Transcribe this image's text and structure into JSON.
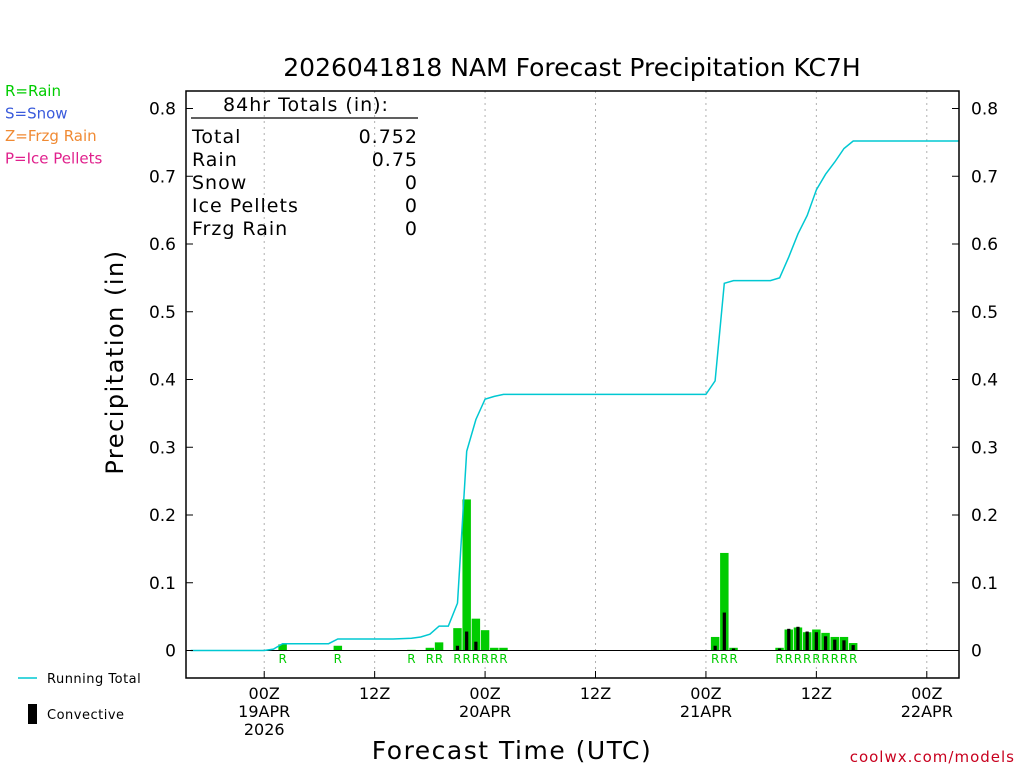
{
  "chart_data": {
    "type": "bar",
    "title": "2026041818 NAM Forecast Precipitation KC7H",
    "xlabel": "Forecast Time (UTC)",
    "ylabel": "Precipitation (in)",
    "ylim": [
      0,
      0.82
    ],
    "xlim_hours": [
      -2.5,
      81.5
    ],
    "y_ticks": [
      0,
      0.1,
      0.2,
      0.3,
      0.4,
      0.5,
      0.6,
      0.7,
      0.8
    ],
    "y_tick_labels": [
      "0",
      "0.1",
      "0.2",
      "0.3",
      "0.4",
      "0.5",
      "0.6",
      "0.7",
      "0.8"
    ],
    "x_ticks": [
      {
        "hour": 6,
        "lines": [
          "00Z",
          "19APR",
          "2026"
        ]
      },
      {
        "hour": 18,
        "lines": [
          "12Z"
        ]
      },
      {
        "hour": 30,
        "lines": [
          "00Z",
          "20APR"
        ]
      },
      {
        "hour": 42,
        "lines": [
          "12Z"
        ]
      },
      {
        "hour": 54,
        "lines": [
          "00Z",
          "21APR"
        ]
      },
      {
        "hour": 66,
        "lines": [
          "12Z"
        ]
      },
      {
        "hour": 78,
        "lines": [
          "00Z",
          "22APR"
        ]
      }
    ],
    "legend_top": [
      {
        "label": "R=Rain",
        "color": "#00cc00"
      },
      {
        "label": "S=Snow",
        "color": "#3a5bdc"
      },
      {
        "label": "Z=Frzg Rain",
        "color": "#f08a33"
      },
      {
        "label": "P=Ice Pellets",
        "color": "#e0208c"
      }
    ],
    "legend_bottom": [
      {
        "label": "Running Total",
        "color": "#00c8d2",
        "kind": "line"
      },
      {
        "label": "Convective",
        "color": "#000000",
        "kind": "bar"
      }
    ],
    "totals_box": {
      "header": "84hr Totals (in):",
      "rows": [
        {
          "label": "Total",
          "value": "0.752"
        },
        {
          "label": "Rain",
          "value": "0.75"
        },
        {
          "label": "Snow",
          "value": "0"
        },
        {
          "label": "Ice Pellets",
          "value": "0"
        },
        {
          "label": "Frzg Rain",
          "value": "0"
        }
      ]
    },
    "credit": "coolwx.com/models",
    "series": [
      {
        "name": "Precipitation",
        "color": "#00cc00",
        "bars": [
          {
            "hour": 8,
            "value": 0.009,
            "conv": 0,
            "ptype": "R"
          },
          {
            "hour": 14,
            "value": 0.007,
            "conv": 0,
            "ptype": "R"
          },
          {
            "hour": 22,
            "value": 0.001,
            "conv": 0,
            "ptype": "R"
          },
          {
            "hour": 24,
            "value": 0.004,
            "conv": 0,
            "ptype": "R"
          },
          {
            "hour": 25,
            "value": 0.012,
            "conv": 0,
            "ptype": "R"
          },
          {
            "hour": 27,
            "value": 0.033,
            "conv": 0.007,
            "ptype": "R"
          },
          {
            "hour": 28,
            "value": 0.223,
            "conv": 0.028,
            "ptype": "R"
          },
          {
            "hour": 29,
            "value": 0.047,
            "conv": 0.013,
            "ptype": "R"
          },
          {
            "hour": 30,
            "value": 0.03,
            "conv": 0,
            "ptype": "R"
          },
          {
            "hour": 31,
            "value": 0.004,
            "conv": 0,
            "ptype": "R"
          },
          {
            "hour": 32,
            "value": 0.004,
            "conv": 0,
            "ptype": "R"
          },
          {
            "hour": 55,
            "value": 0.02,
            "conv": 0.007,
            "ptype": "R"
          },
          {
            "hour": 56,
            "value": 0.144,
            "conv": 0.056,
            "ptype": "R"
          },
          {
            "hour": 57,
            "value": 0.004,
            "conv": 0.003,
            "ptype": "R"
          },
          {
            "hour": 62,
            "value": 0.004,
            "conv": 0.003,
            "ptype": "R"
          },
          {
            "hour": 63,
            "value": 0.031,
            "conv": 0.032,
            "ptype": "R"
          },
          {
            "hour": 64,
            "value": 0.034,
            "conv": 0.035,
            "ptype": "R"
          },
          {
            "hour": 65,
            "value": 0.027,
            "conv": 0.028,
            "ptype": "R"
          },
          {
            "hour": 66,
            "value": 0.031,
            "conv": 0.027,
            "ptype": "R"
          },
          {
            "hour": 67,
            "value": 0.026,
            "conv": 0.021,
            "ptype": "R"
          },
          {
            "hour": 68,
            "value": 0.02,
            "conv": 0.016,
            "ptype": "R"
          },
          {
            "hour": 69,
            "value": 0.02,
            "conv": 0.015,
            "ptype": "R"
          },
          {
            "hour": 70,
            "value": 0.011,
            "conv": 0.008,
            "ptype": "R"
          }
        ]
      },
      {
        "name": "Running Total",
        "color": "#00c8d2",
        "points": [
          [
            -2,
            0
          ],
          [
            6,
            0
          ],
          [
            7,
            0.002
          ],
          [
            8,
            0.01
          ],
          [
            12,
            0.01
          ],
          [
            13,
            0.01
          ],
          [
            14,
            0.017
          ],
          [
            15,
            0.017
          ],
          [
            20,
            0.017
          ],
          [
            22,
            0.018
          ],
          [
            23,
            0.02
          ],
          [
            24,
            0.024
          ],
          [
            25,
            0.036
          ],
          [
            26,
            0.036
          ],
          [
            27,
            0.07
          ],
          [
            28,
            0.294
          ],
          [
            29,
            0.341
          ],
          [
            30,
            0.371
          ],
          [
            31,
            0.375
          ],
          [
            32,
            0.378
          ],
          [
            54,
            0.378
          ],
          [
            55,
            0.398
          ],
          [
            56,
            0.542
          ],
          [
            57,
            0.546
          ],
          [
            61,
            0.546
          ],
          [
            62,
            0.55
          ],
          [
            63,
            0.581
          ],
          [
            64,
            0.615
          ],
          [
            65,
            0.642
          ],
          [
            66,
            0.68
          ],
          [
            67,
            0.703
          ],
          [
            68,
            0.721
          ],
          [
            69,
            0.741
          ],
          [
            70,
            0.752
          ],
          [
            81.5,
            0.752
          ]
        ]
      }
    ]
  }
}
